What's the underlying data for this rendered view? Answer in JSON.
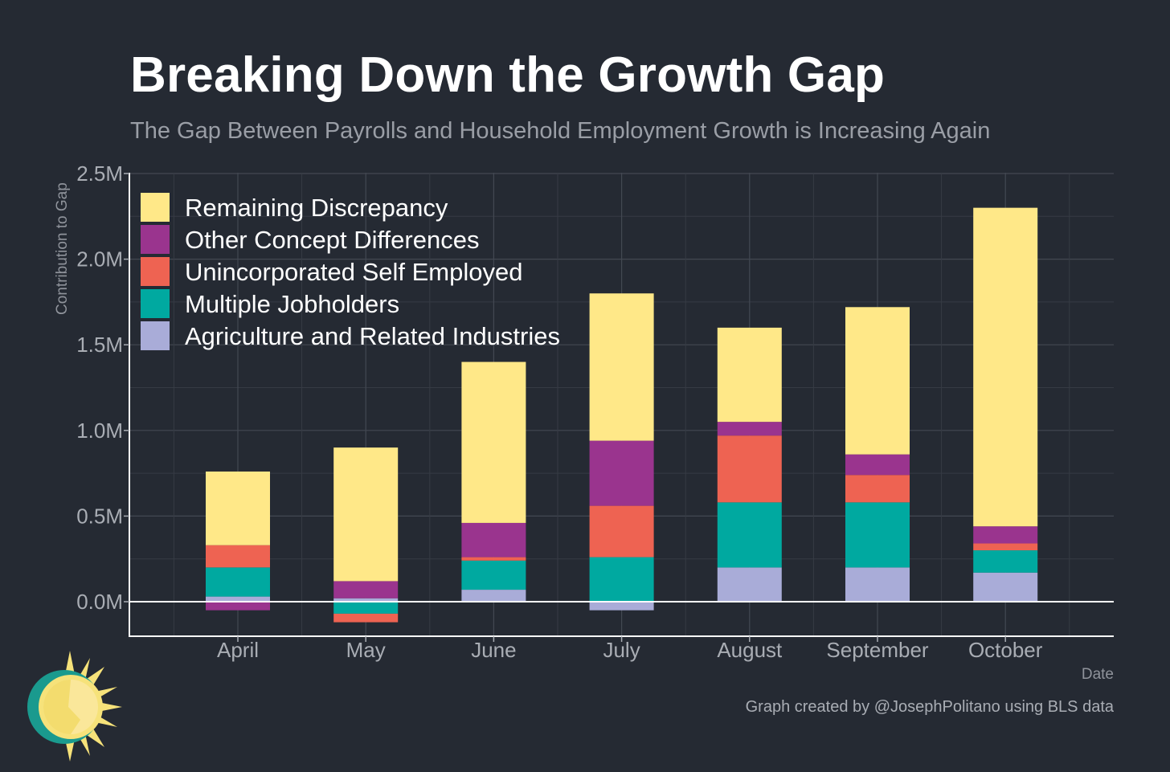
{
  "chart_data": {
    "type": "bar",
    "stacked": true,
    "title": "Breaking Down the Growth Gap",
    "subtitle": "The Gap Between Payrolls and Household Employment Growth is Increasing Again",
    "xlabel": "Date",
    "ylabel": "Contribution to Gap",
    "ylim": [
      -0.2,
      2.5
    ],
    "yticks": [
      0.0,
      0.5,
      1.0,
      1.5,
      2.0,
      2.5
    ],
    "ytick_labels": [
      "0.0M",
      "0.5M",
      "1.0M",
      "1.5M",
      "2.0M",
      "2.5M"
    ],
    "categories": [
      "April",
      "May",
      "June",
      "July",
      "August",
      "September",
      "October"
    ],
    "grid": true,
    "legend_position": "top-left",
    "series": [
      {
        "name": "Agriculture and Related Industries",
        "color": "#a9acd8",
        "values": [
          0.03,
          0.02,
          0.07,
          -0.05,
          0.2,
          0.2,
          0.17
        ]
      },
      {
        "name": "Multiple Jobholders",
        "color": "#00a9a0",
        "values": [
          0.17,
          -0.07,
          0.17,
          0.26,
          0.38,
          0.38,
          0.13
        ]
      },
      {
        "name": "Unincorporated Self Employed",
        "color": "#ee6352",
        "values": [
          0.13,
          -0.05,
          0.02,
          0.3,
          0.39,
          0.16,
          0.04
        ]
      },
      {
        "name": "Other Concept Differences",
        "color": "#9a348e",
        "values": [
          -0.05,
          0.1,
          0.2,
          0.38,
          0.08,
          0.12,
          0.1
        ]
      },
      {
        "name": "Remaining Discrepancy",
        "color": "#ffe888",
        "values": [
          0.43,
          0.78,
          0.94,
          0.86,
          0.55,
          0.86,
          1.86
        ]
      }
    ]
  },
  "caption": "Graph created by @JosephPolitano using BLS data"
}
